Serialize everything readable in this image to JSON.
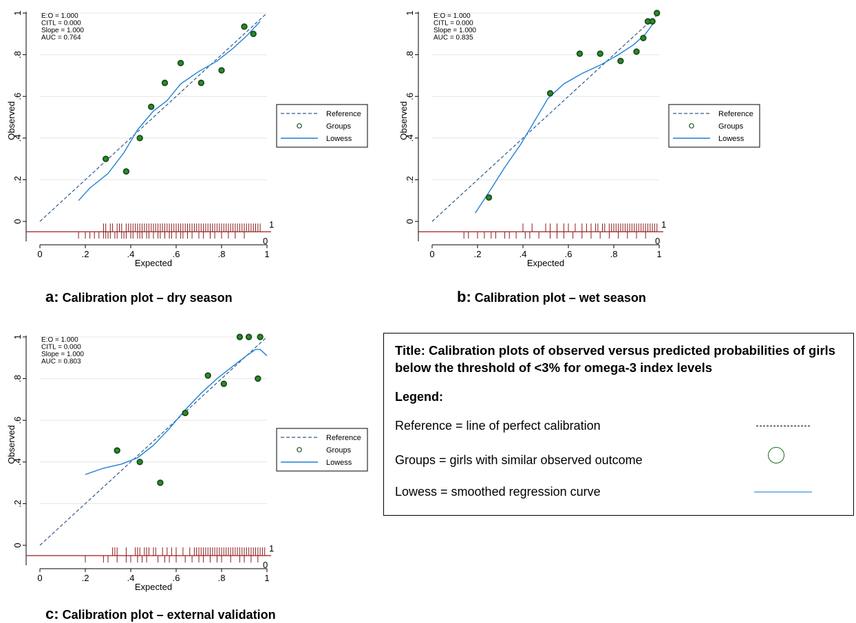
{
  "colors": {
    "reference": "#2c5b8a",
    "lowess": "#1f7fd6",
    "group_fill": "#2b8a2b",
    "group_ring": "#1a4d1a",
    "spike": "#8b1a1a",
    "baseline": "#a01818"
  },
  "chart_data": [
    {
      "type": "scatter",
      "id": "a",
      "caption_letter": "a:",
      "caption_text": "Calibration plot – dry season",
      "xlabel": "Expected",
      "ylabel": "Observed",
      "xlim": [
        0,
        1
      ],
      "ylim": [
        0,
        1
      ],
      "xticks": [
        "0",
        ".2",
        ".4",
        ".6",
        ".8",
        "1"
      ],
      "yticks": [
        "0",
        ".2",
        ".4",
        ".6",
        ".8",
        "1"
      ],
      "grid": true,
      "stats": [
        "E:O = 1.000",
        "CITL = 0.000",
        "Slope = 1.000",
        "AUC = 0.764"
      ],
      "legend": [
        "Reference",
        "Groups",
        "Lowess"
      ],
      "legend_position": "right",
      "reference": [
        [
          0,
          0
        ],
        [
          1,
          1
        ]
      ],
      "groups": [
        [
          0.29,
          0.3
        ],
        [
          0.38,
          0.24
        ],
        [
          0.44,
          0.4
        ],
        [
          0.49,
          0.55
        ],
        [
          0.55,
          0.665
        ],
        [
          0.62,
          0.76
        ],
        [
          0.71,
          0.665
        ],
        [
          0.8,
          0.725
        ],
        [
          0.9,
          0.935
        ],
        [
          0.94,
          0.9
        ]
      ],
      "lowess": [
        [
          0.17,
          0.1
        ],
        [
          0.22,
          0.16
        ],
        [
          0.3,
          0.23
        ],
        [
          0.37,
          0.33
        ],
        [
          0.43,
          0.44
        ],
        [
          0.5,
          0.53
        ],
        [
          0.56,
          0.58
        ],
        [
          0.62,
          0.66
        ],
        [
          0.7,
          0.72
        ],
        [
          0.78,
          0.77
        ],
        [
          0.85,
          0.83
        ],
        [
          0.91,
          0.89
        ],
        [
          0.97,
          0.96
        ]
      ],
      "rug_labels": [
        "1",
        "0"
      ],
      "rug_outcome1": [
        0.28,
        0.29,
        0.31,
        0.32,
        0.34,
        0.35,
        0.36,
        0.38,
        0.39,
        0.4,
        0.41,
        0.42,
        0.43,
        0.44,
        0.45,
        0.46,
        0.47,
        0.48,
        0.49,
        0.5,
        0.51,
        0.52,
        0.53,
        0.54,
        0.55,
        0.56,
        0.57,
        0.58,
        0.59,
        0.6,
        0.61,
        0.62,
        0.63,
        0.64,
        0.65,
        0.66,
        0.67,
        0.68,
        0.69,
        0.7,
        0.71,
        0.72,
        0.73,
        0.74,
        0.75,
        0.76,
        0.77,
        0.78,
        0.79,
        0.8,
        0.81,
        0.82,
        0.83,
        0.84,
        0.85,
        0.86,
        0.87,
        0.88,
        0.89,
        0.9,
        0.91,
        0.92,
        0.93,
        0.94,
        0.95,
        0.96,
        0.97
      ],
      "rug_outcome0": [
        0.17,
        0.2,
        0.22,
        0.24,
        0.26,
        0.28,
        0.29,
        0.3,
        0.31,
        0.33,
        0.34,
        0.36,
        0.37,
        0.38,
        0.4,
        0.41,
        0.43,
        0.44,
        0.45,
        0.47,
        0.48,
        0.5,
        0.52,
        0.53,
        0.55,
        0.57,
        0.58,
        0.6,
        0.62,
        0.63,
        0.65,
        0.67,
        0.7,
        0.72,
        0.75,
        0.77,
        0.8,
        0.83,
        0.86,
        0.9
      ]
    },
    {
      "type": "scatter",
      "id": "b",
      "caption_letter": "b:",
      "caption_text": "Calibration plot – wet season",
      "xlabel": "Expected",
      "ylabel": "Observed",
      "xlim": [
        0,
        1
      ],
      "ylim": [
        0,
        1
      ],
      "xticks": [
        "0",
        ".2",
        ".4",
        ".6",
        ".8",
        "1"
      ],
      "yticks": [
        "0",
        ".2",
        ".4",
        ".6",
        ".8",
        "1"
      ],
      "grid": true,
      "stats": [
        "E:O = 1.000",
        "CITL = 0.000",
        "Slope = 1.000",
        "AUC = 0.835"
      ],
      "legend": [
        "Reference",
        "Groups",
        "Lowess"
      ],
      "legend_position": "right",
      "reference": [
        [
          0,
          0
        ],
        [
          1,
          1
        ]
      ],
      "groups": [
        [
          0.25,
          0.115
        ],
        [
          0.52,
          0.615
        ],
        [
          0.65,
          0.805
        ],
        [
          0.74,
          0.805
        ],
        [
          0.83,
          0.77
        ],
        [
          0.9,
          0.815
        ],
        [
          0.93,
          0.88
        ],
        [
          0.95,
          0.96
        ],
        [
          0.97,
          0.96
        ],
        [
          0.99,
          1.0
        ]
      ],
      "lowess": [
        [
          0.19,
          0.04
        ],
        [
          0.25,
          0.14
        ],
        [
          0.32,
          0.26
        ],
        [
          0.39,
          0.37
        ],
        [
          0.45,
          0.48
        ],
        [
          0.51,
          0.59
        ],
        [
          0.58,
          0.66
        ],
        [
          0.66,
          0.71
        ],
        [
          0.74,
          0.75
        ],
        [
          0.82,
          0.8
        ],
        [
          0.89,
          0.85
        ],
        [
          0.94,
          0.9
        ],
        [
          0.98,
          0.96
        ]
      ],
      "rug_labels": [
        "1",
        "0"
      ],
      "rug_outcome1": [
        0.4,
        0.44,
        0.5,
        0.52,
        0.55,
        0.58,
        0.6,
        0.63,
        0.66,
        0.68,
        0.7,
        0.72,
        0.73,
        0.75,
        0.76,
        0.78,
        0.79,
        0.8,
        0.81,
        0.82,
        0.83,
        0.84,
        0.85,
        0.86,
        0.87,
        0.88,
        0.89,
        0.9,
        0.91,
        0.92,
        0.93,
        0.94,
        0.95,
        0.96,
        0.97,
        0.98,
        0.99
      ],
      "rug_outcome0": [
        0.14,
        0.16,
        0.2,
        0.23,
        0.26,
        0.28,
        0.32,
        0.34,
        0.37,
        0.41,
        0.43,
        0.47,
        0.52,
        0.55,
        0.58,
        0.62,
        0.66,
        0.7,
        0.74,
        0.78,
        0.82,
        0.86,
        0.9,
        0.94
      ]
    },
    {
      "type": "scatter",
      "id": "c",
      "caption_letter": "c:",
      "caption_text": "Calibration plot – external validation",
      "xlabel": "Expected",
      "ylabel": "Observed",
      "xlim": [
        0,
        1
      ],
      "ylim": [
        0,
        1
      ],
      "xticks": [
        "0",
        ".2",
        ".4",
        ".6",
        ".8",
        "1"
      ],
      "yticks": [
        "0",
        ".2",
        ".4",
        ".6",
        ".8",
        "1"
      ],
      "grid": true,
      "stats": [
        "E:O = 1.000",
        "CITL = 0.000",
        "Slope = 1.000",
        "AUC = 0.803"
      ],
      "legend": [
        "Reference",
        "Groups",
        "Lowess"
      ],
      "legend_position": "right",
      "reference": [
        [
          0,
          0
        ],
        [
          1,
          1
        ]
      ],
      "groups": [
        [
          0.34,
          0.455
        ],
        [
          0.44,
          0.4
        ],
        [
          0.53,
          0.3
        ],
        [
          0.64,
          0.635
        ],
        [
          0.74,
          0.815
        ],
        [
          0.81,
          0.775
        ],
        [
          0.88,
          1.0
        ],
        [
          0.92,
          1.0
        ],
        [
          0.96,
          0.8
        ],
        [
          0.97,
          1.0
        ]
      ],
      "lowess": [
        [
          0.2,
          0.34
        ],
        [
          0.28,
          0.37
        ],
        [
          0.36,
          0.39
        ],
        [
          0.43,
          0.42
        ],
        [
          0.5,
          0.48
        ],
        [
          0.57,
          0.56
        ],
        [
          0.64,
          0.65
        ],
        [
          0.71,
          0.73
        ],
        [
          0.78,
          0.8
        ],
        [
          0.85,
          0.86
        ],
        [
          0.91,
          0.91
        ],
        [
          0.95,
          0.94
        ],
        [
          0.97,
          0.94
        ],
        [
          1.0,
          0.91
        ]
      ],
      "rug_labels": [
        "1",
        "0"
      ],
      "rug_outcome1": [
        0.32,
        0.33,
        0.34,
        0.38,
        0.42,
        0.43,
        0.44,
        0.46,
        0.47,
        0.48,
        0.5,
        0.51,
        0.54,
        0.56,
        0.58,
        0.6,
        0.63,
        0.66,
        0.68,
        0.69,
        0.7,
        0.71,
        0.72,
        0.73,
        0.74,
        0.75,
        0.76,
        0.77,
        0.78,
        0.79,
        0.8,
        0.81,
        0.82,
        0.83,
        0.84,
        0.85,
        0.86,
        0.87,
        0.88,
        0.89,
        0.9,
        0.91,
        0.92,
        0.93,
        0.94,
        0.95,
        0.96,
        0.97,
        0.98,
        0.99
      ],
      "rug_outcome0": [
        0.2,
        0.28,
        0.3,
        0.34,
        0.38,
        0.4,
        0.43,
        0.45,
        0.47,
        0.52,
        0.55,
        0.57,
        0.6,
        0.64,
        0.67,
        0.7,
        0.72,
        0.75,
        0.78,
        0.8,
        0.84,
        0.88,
        0.9,
        0.93,
        0.96
      ]
    }
  ],
  "info": {
    "title": "Title:  Calibration plots of observed versus predicted probabilities of girls below the threshold of <3% for omega-3 index levels",
    "legend_heading": "Legend:",
    "reference_row": "Reference = line of perfect calibration",
    "groups_row": "Groups = girls with similar observed outcome",
    "lowess_row": "Lowess = smoothed regression curve"
  }
}
